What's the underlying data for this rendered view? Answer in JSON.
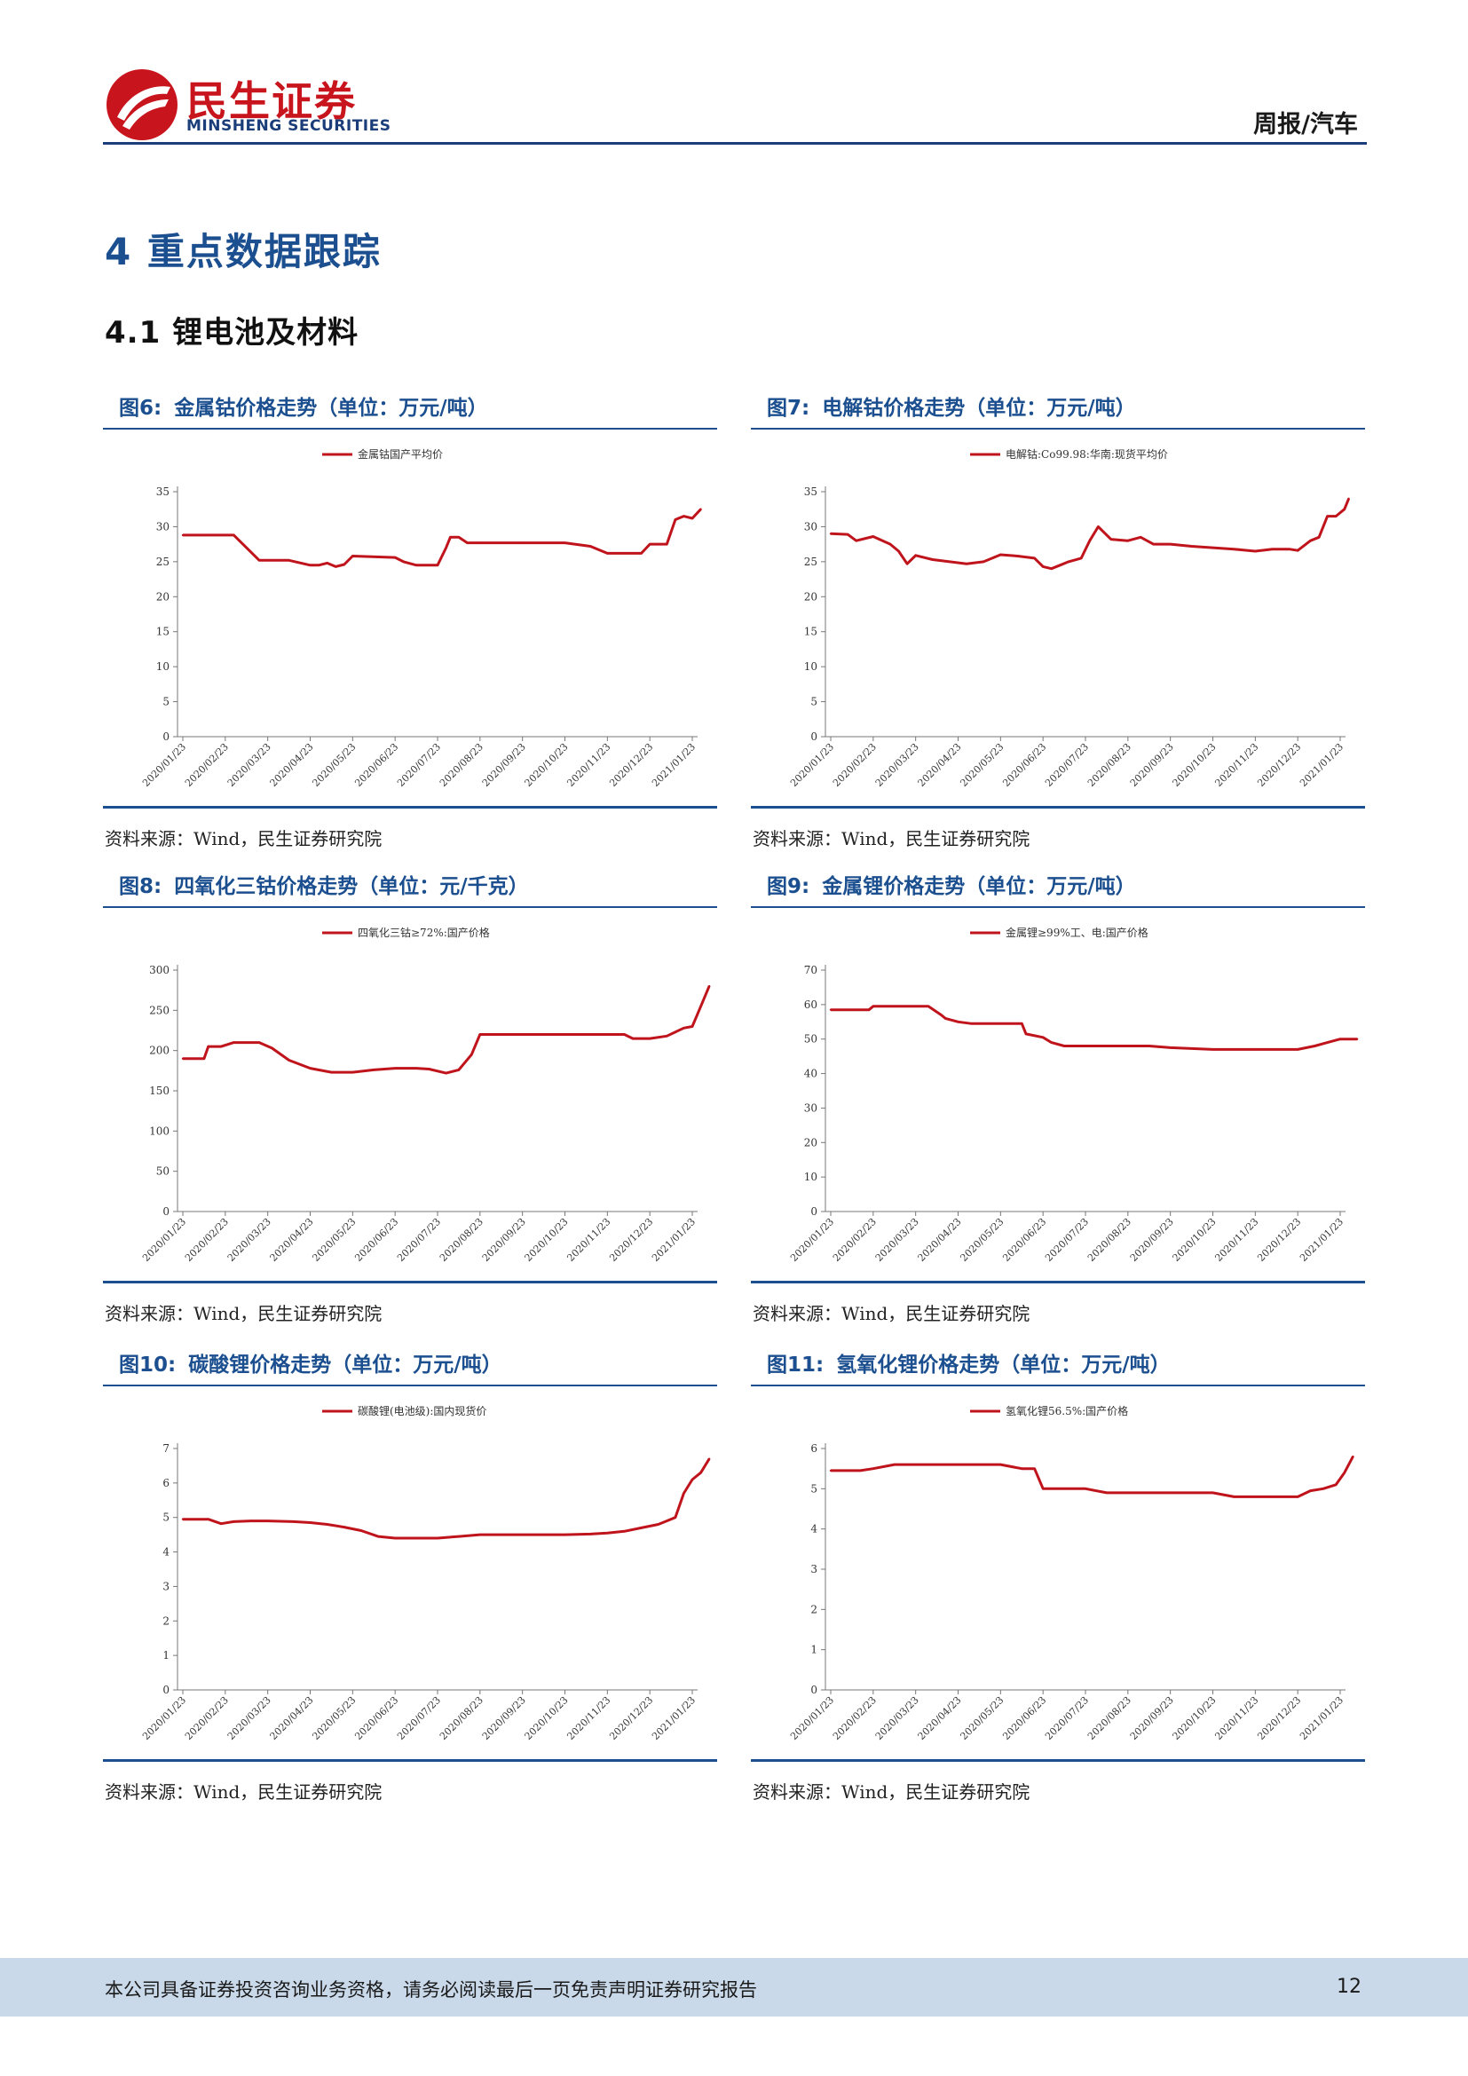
{
  "header": {
    "brand_cn": "民生证券",
    "brand_en": "MINSHENG SECURITIES",
    "report_type": "周报/汽车"
  },
  "headings": {
    "section": "4 重点数据跟踪",
    "subsection": "4.1 锂电池及材料"
  },
  "figures": [
    {
      "num": "图6:",
      "title": "金属钴价格走势（单位：万元/吨）",
      "source": "资料来源：Wind，民生证券研究院",
      "chart_data": {
        "type": "line",
        "legend": "金属钴国产平均价",
        "ylim": [
          0,
          35
        ],
        "yticks": [
          0,
          5,
          10,
          15,
          20,
          25,
          30,
          35
        ],
        "xticks": [
          "2020/01/23",
          "2020/02/23",
          "2020/03/23",
          "2020/04/23",
          "2020/05/23",
          "2020/06/23",
          "2020/07/23",
          "2020/08/23",
          "2020/09/23",
          "2020/10/23",
          "2020/11/23",
          "2020/12/23",
          "2021/01/23"
        ],
        "x": [
          0,
          0.5,
          1.2,
          1.8,
          2.5,
          3.0,
          3.2,
          3.4,
          3.6,
          3.8,
          4.0,
          5.0,
          5.2,
          5.5,
          5.7,
          6.0,
          6.2,
          6.3,
          6.5,
          6.7,
          7.0,
          8.0,
          9.0,
          9.6,
          10.0,
          10.4,
          10.8,
          11.0,
          11.4,
          11.6,
          11.8,
          12.0,
          12.2
        ],
        "values": [
          28.8,
          28.8,
          28.8,
          25.2,
          25.2,
          24.5,
          24.5,
          24.8,
          24.3,
          24.6,
          25.8,
          25.6,
          25.0,
          24.5,
          24.5,
          24.5,
          27.0,
          28.5,
          28.5,
          27.7,
          27.7,
          27.7,
          27.7,
          27.2,
          26.2,
          26.2,
          26.2,
          27.5,
          27.5,
          31.0,
          31.5,
          31.2,
          32.5
        ]
      }
    },
    {
      "num": "图7:",
      "title": "电解钴价格走势（单位：万元/吨）",
      "source": "资料来源：Wind，民生证券研究院",
      "chart_data": {
        "type": "line",
        "legend": "电解钴:Co99.98:华南:现货平均价",
        "ylim": [
          0,
          35
        ],
        "yticks": [
          0,
          5,
          10,
          15,
          20,
          25,
          30,
          35
        ],
        "xticks": [
          "2020/01/23",
          "2020/02/23",
          "2020/03/23",
          "2020/04/23",
          "2020/05/23",
          "2020/06/23",
          "2020/07/23",
          "2020/08/23",
          "2020/09/23",
          "2020/10/23",
          "2020/11/23",
          "2020/12/23",
          "2021/01/23"
        ],
        "x": [
          0,
          0.4,
          0.6,
          1.0,
          1.4,
          1.6,
          1.8,
          2.0,
          2.4,
          2.8,
          3.2,
          3.6,
          4.0,
          4.4,
          4.8,
          5.0,
          5.2,
          5.4,
          5.6,
          5.9,
          6.1,
          6.3,
          6.6,
          7.0,
          7.3,
          7.6,
          8.0,
          8.5,
          9.0,
          9.5,
          10.0,
          10.4,
          10.8,
          11.0,
          11.3,
          11.5,
          11.7,
          11.9,
          12.1,
          12.2
        ],
        "values": [
          29.0,
          28.9,
          28.0,
          28.6,
          27.5,
          26.5,
          24.7,
          25.9,
          25.3,
          25.0,
          24.7,
          25.0,
          26.0,
          25.8,
          25.5,
          24.3,
          24.0,
          24.5,
          25.0,
          25.5,
          28.0,
          30.0,
          28.2,
          28.0,
          28.5,
          27.5,
          27.5,
          27.2,
          27.0,
          26.8,
          26.5,
          26.8,
          26.8,
          26.6,
          28.0,
          28.5,
          31.5,
          31.5,
          32.5,
          34.0
        ]
      }
    },
    {
      "num": "图8:",
      "title": "四氧化三钴价格走势（单位：元/千克）",
      "source": "资料来源：Wind，民生证券研究院",
      "chart_data": {
        "type": "line",
        "legend": "四氧化三钴≥72%:国产价格",
        "ylim": [
          0,
          300
        ],
        "yticks": [
          0,
          50,
          100,
          150,
          200,
          250,
          300
        ],
        "xticks": [
          "2020/01/23",
          "2020/02/23",
          "2020/03/23",
          "2020/04/23",
          "2020/05/23",
          "2020/06/23",
          "2020/07/23",
          "2020/08/23",
          "2020/09/23",
          "2020/10/23",
          "2020/11/23",
          "2020/12/23",
          "2021/01/23"
        ],
        "x": [
          0,
          0.5,
          0.6,
          0.9,
          1.2,
          1.8,
          2.1,
          2.5,
          3.0,
          3.5,
          4.0,
          4.5,
          5.0,
          5.5,
          5.8,
          6.2,
          6.5,
          6.8,
          7.0,
          8.0,
          9.0,
          10.0,
          10.4,
          10.6,
          11.0,
          11.4,
          11.8,
          12.0,
          12.2,
          12.4
        ],
        "values": [
          190,
          190,
          205,
          205,
          210,
          210,
          203,
          188,
          178,
          173,
          173,
          176,
          178,
          178,
          177,
          172,
          176,
          195,
          220,
          220,
          220,
          220,
          220,
          215,
          215,
          218,
          228,
          230,
          255,
          280
        ]
      }
    },
    {
      "num": "图9:",
      "title": "金属锂价格走势（单位：万元/吨）",
      "source": "资料来源：Wind，民生证券研究院",
      "chart_data": {
        "type": "line",
        "legend": "金属锂≥99%工、电:国产价格",
        "ylim": [
          0,
          70
        ],
        "yticks": [
          0,
          10,
          20,
          30,
          40,
          50,
          60,
          70
        ],
        "xticks": [
          "2020/01/23",
          "2020/02/23",
          "2020/03/23",
          "2020/04/23",
          "2020/05/23",
          "2020/06/23",
          "2020/07/23",
          "2020/08/23",
          "2020/09/23",
          "2020/10/23",
          "2020/11/23",
          "2020/12/23",
          "2021/01/23"
        ],
        "x": [
          0,
          0.9,
          1.0,
          2.3,
          2.6,
          2.7,
          3.0,
          3.3,
          4.0,
          4.5,
          4.6,
          5.0,
          5.2,
          5.5,
          6.0,
          7.0,
          7.5,
          8.0,
          9.0,
          10.0,
          11.0,
          11.4,
          11.7,
          12.0,
          12.4
        ],
        "values": [
          58.5,
          58.5,
          59.5,
          59.5,
          57,
          56,
          55,
          54.5,
          54.5,
          54.5,
          51.5,
          50.5,
          49,
          48,
          48,
          48,
          48,
          47.5,
          47,
          47,
          47,
          48,
          49,
          50,
          50
        ]
      }
    },
    {
      "num": "图10:",
      "title": "碳酸锂价格走势（单位：万元/吨）",
      "source": "资料来源：Wind，民生证券研究院",
      "chart_data": {
        "type": "line",
        "legend": "碳酸锂(电池级):国内现货价",
        "ylim": [
          0,
          7
        ],
        "yticks": [
          0,
          1,
          2,
          3,
          4,
          5,
          6,
          7
        ],
        "xticks": [
          "2020/01/23",
          "2020/02/23",
          "2020/03/23",
          "2020/04/23",
          "2020/05/23",
          "2020/06/23",
          "2020/07/23",
          "2020/08/23",
          "2020/09/23",
          "2020/10/23",
          "2020/11/23",
          "2020/12/23",
          "2021/01/23"
        ],
        "x": [
          0,
          0.6,
          0.9,
          1.2,
          1.6,
          2.0,
          2.6,
          3.0,
          3.4,
          3.8,
          4.2,
          4.6,
          5.0,
          6.0,
          6.5,
          7.0,
          8.0,
          9.0,
          9.6,
          10.0,
          10.4,
          10.8,
          11.2,
          11.4,
          11.6,
          11.8,
          12.0,
          12.2,
          12.4
        ],
        "values": [
          4.95,
          4.95,
          4.82,
          4.88,
          4.9,
          4.9,
          4.88,
          4.85,
          4.8,
          4.72,
          4.62,
          4.45,
          4.4,
          4.4,
          4.45,
          4.5,
          4.5,
          4.5,
          4.52,
          4.55,
          4.6,
          4.7,
          4.8,
          4.9,
          5.0,
          5.7,
          6.1,
          6.3,
          6.7
        ]
      }
    },
    {
      "num": "图11:",
      "title": "氢氧化锂价格走势（单位：万元/吨）",
      "source": "资料来源：Wind，民生证券研究院",
      "chart_data": {
        "type": "line",
        "legend": "氢氧化锂56.5%:国产价格",
        "ylim": [
          0,
          6
        ],
        "yticks": [
          0,
          1,
          2,
          3,
          4,
          5,
          6
        ],
        "xticks": [
          "2020/01/23",
          "2020/02/23",
          "2020/03/23",
          "2020/04/23",
          "2020/05/23",
          "2020/06/23",
          "2020/07/23",
          "2020/08/23",
          "2020/09/23",
          "2020/10/23",
          "2020/11/23",
          "2020/12/23",
          "2021/01/23"
        ],
        "x": [
          0,
          0.7,
          1.0,
          1.5,
          2.5,
          3.5,
          4.0,
          4.5,
          4.8,
          5.0,
          5.5,
          6.0,
          6.5,
          7.0,
          8.0,
          9.0,
          9.5,
          10.0,
          10.5,
          11.0,
          11.3,
          11.6,
          11.9,
          12.1,
          12.3
        ],
        "values": [
          5.45,
          5.45,
          5.5,
          5.6,
          5.6,
          5.6,
          5.6,
          5.5,
          5.5,
          5.0,
          5.0,
          5.0,
          4.9,
          4.9,
          4.9,
          4.9,
          4.8,
          4.8,
          4.8,
          4.8,
          4.95,
          5.0,
          5.1,
          5.4,
          5.8
        ]
      }
    }
  ],
  "footer": {
    "disclaimer": "本公司具备证券投资咨询业务资格，请务必阅读最后一页免责声明证券研究报告",
    "page_number": "12"
  }
}
